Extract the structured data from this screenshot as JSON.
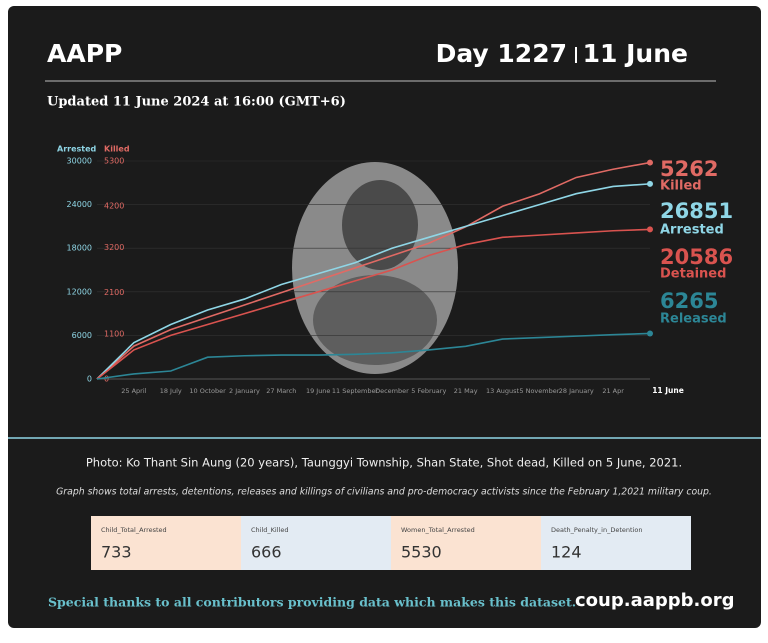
{
  "header": {
    "title": "AAPP",
    "day": "Day 1227",
    "date": "11 June",
    "updated": "Updated 11 June 2024 at 16:00 (GMT+6)"
  },
  "chart_data": {
    "type": "line",
    "ylabel": "Arrested",
    "y2label": "Killed",
    "categories": [
      null,
      "25 April",
      "18 July",
      "10 October",
      "2 January",
      "27 March",
      "19 June",
      "11 September",
      "December",
      "5 February",
      "21 May",
      "13 August",
      "5 November",
      "28 January",
      "21 Apr",
      "11 June"
    ],
    "ylim": [
      0,
      30000
    ],
    "yticks": [
      0,
      6000,
      12000,
      18000,
      24000,
      30000
    ],
    "y2lim": [
      0,
      5300
    ],
    "y2ticks": [
      0,
      1100,
      2100,
      3200,
      4200,
      5300
    ],
    "grid": true,
    "series": [
      {
        "name": "Killed",
        "color": "#e06a64",
        "axis": "y2",
        "values": [
          0,
          800,
          1200,
          1500,
          1800,
          2100,
          2400,
          2700,
          3000,
          3300,
          3700,
          4200,
          4500,
          4900,
          5100,
          5262
        ]
      },
      {
        "name": "Arrested",
        "color": "#8fd6e6",
        "values": [
          0,
          5000,
          7500,
          9500,
          11000,
          13000,
          14500,
          16000,
          18000,
          19500,
          21000,
          22500,
          24000,
          25500,
          26500,
          26851
        ]
      },
      {
        "name": "Detained",
        "color": "#d9534f",
        "values": [
          0,
          4000,
          6000,
          7500,
          9000,
          10500,
          12000,
          13500,
          15000,
          17000,
          18500,
          19500,
          19800,
          20100,
          20400,
          20586
        ]
      },
      {
        "name": "Released",
        "color": "#2c8696",
        "values": [
          0,
          700,
          1100,
          3000,
          3200,
          3300,
          3300,
          3400,
          3600,
          4000,
          4500,
          5500,
          5700,
          5900,
          6100,
          6265
        ]
      }
    ]
  },
  "caption": "Photo: Ko Thant Sin Aung (20 years), Taunggyi Township, Shan State, Shot dead, Killed on 5 June, 2021.",
  "note": "Graph shows total arrests, detentions, releases and killings of civilians and pro-democracy activists since the February 1,2021 military coup.",
  "stats": [
    {
      "label": "Child_Total_Arrested",
      "value": 733
    },
    {
      "label": "Child_Killed",
      "value": 666
    },
    {
      "label": "Women_Total_Arrested",
      "value": 5530
    },
    {
      "label": "Death_Penalty_in_Detention",
      "value": 124
    }
  ],
  "footer": {
    "thanks": "Special thanks to all contributors providing data which makes this dataset.",
    "site": "coup.aappb.org"
  }
}
